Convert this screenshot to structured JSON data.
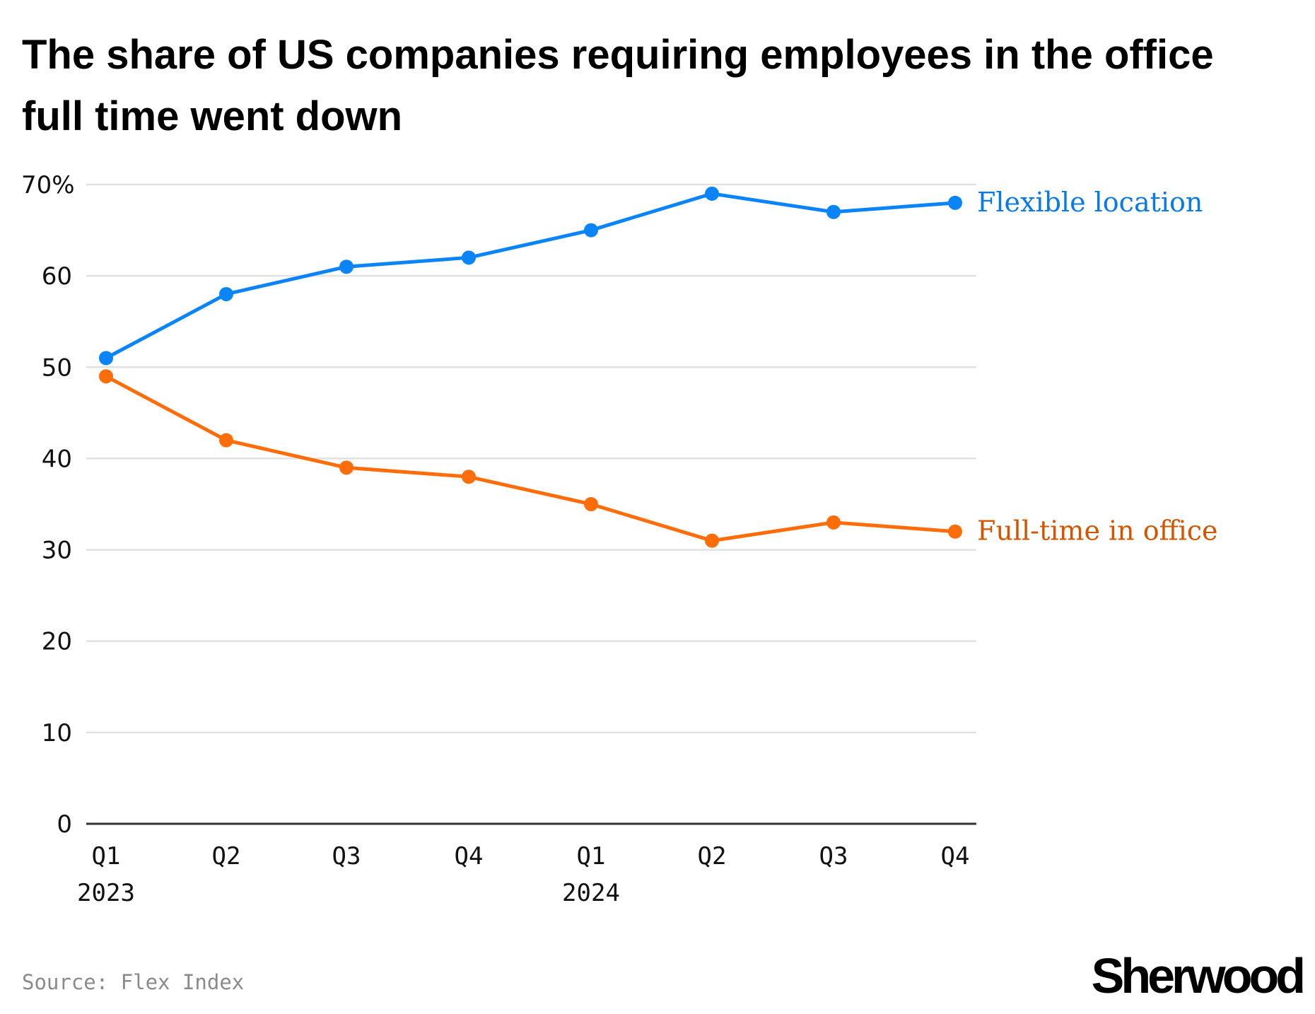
{
  "title": "The share of US companies requiring employees in the office full time went down",
  "source": "Source: Flex Index",
  "logo": "Sherwood",
  "chart_data": {
    "type": "line",
    "title": "The share of US companies requiring employees in the office full time went down",
    "categories": [
      "Q1 2023",
      "Q2 2023",
      "Q3 2023",
      "Q4 2023",
      "Q1 2024",
      "Q2 2024",
      "Q3 2024",
      "Q4 2024"
    ],
    "x_tick_labels": [
      {
        "quarter": "Q1",
        "year": "2023"
      },
      {
        "quarter": "Q2",
        "year": ""
      },
      {
        "quarter": "Q3",
        "year": ""
      },
      {
        "quarter": "Q4",
        "year": ""
      },
      {
        "quarter": "Q1",
        "year": "2024"
      },
      {
        "quarter": "Q2",
        "year": ""
      },
      {
        "quarter": "Q3",
        "year": ""
      },
      {
        "quarter": "Q4",
        "year": ""
      }
    ],
    "y_ticks": [
      0,
      10,
      20,
      30,
      40,
      50,
      60,
      70
    ],
    "y_tick_labels": [
      "0",
      "10",
      "20",
      "30",
      "40",
      "50",
      "60",
      "70%"
    ],
    "ylim": [
      0,
      70
    ],
    "grid": true,
    "legend": "direct labels at right end of lines",
    "series": [
      {
        "name": "Flexible location",
        "color": "#0a84f7",
        "label_color": "#0a7ae8",
        "values": [
          51,
          58,
          61,
          62,
          65,
          69,
          67,
          68
        ]
      },
      {
        "name": "Full-time in office",
        "color": "#ff6c0a",
        "label_color": "#d45400",
        "values": [
          49,
          42,
          39,
          38,
          35,
          31,
          33,
          32
        ]
      }
    ]
  }
}
